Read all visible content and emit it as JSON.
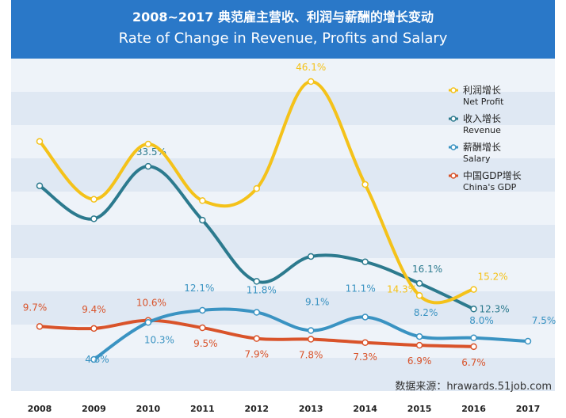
{
  "header": {
    "title_cn": "2008~2017 典范雇主营收、利润与薪酬的增长变动",
    "title_en": "Rate of Change in Revenue, Profits  and Salary"
  },
  "source": "数据来源：hrawards.51job.com",
  "colors": {
    "header_bg": "#2a78c8",
    "net_profit": "#f4c21a",
    "revenue": "#2c7a8e",
    "salary": "#3a93c2",
    "gdp": "#d9532a",
    "band_a": "#dfe8f3",
    "band_b": "#eef3f9"
  },
  "chart_data": {
    "type": "line",
    "title": "Rate of Change in Revenue, Profits  and Salary",
    "xlabel": "",
    "ylabel": "",
    "categories": [
      "2008",
      "2009",
      "2010",
      "2011",
      "2012",
      "2013",
      "2014",
      "2015",
      "2016",
      "2017"
    ],
    "grid": true,
    "legend_position": "top-right",
    "series": [
      {
        "key": "net_profit",
        "name_cn": "利润增长",
        "name_en": "Net Profit",
        "values": [
          37.2,
          28.6,
          36.8,
          28.4,
          30.2,
          46.1,
          30.8,
          14.3,
          15.2,
          null
        ],
        "labels": [
          null,
          null,
          null,
          null,
          null,
          "46.1%",
          null,
          "14.3%",
          "15.2%",
          null
        ]
      },
      {
        "key": "revenue",
        "name_cn": "收入增长",
        "name_en": "Revenue",
        "values": [
          30.6,
          25.7,
          33.5,
          25.5,
          16.4,
          20.1,
          19.3,
          16.1,
          12.3,
          null
        ],
        "labels": [
          null,
          null,
          "33.5%",
          null,
          null,
          null,
          null,
          "16.1%",
          "12.3%",
          null
        ]
      },
      {
        "key": "salary",
        "name_cn": "薪酬增长",
        "name_en": "Salary",
        "values": [
          null,
          4.8,
          10.3,
          12.1,
          11.8,
          9.1,
          11.1,
          8.2,
          8.0,
          7.5
        ],
        "labels": [
          null,
          "4.8%",
          "10.3%",
          "12.1%",
          "11.8%",
          "9.1%",
          "11.1%",
          "8.2%",
          "8.0%",
          "7.5%"
        ]
      },
      {
        "key": "gdp",
        "name_cn": "中国GDP增长",
        "name_en": "China's GDP",
        "values": [
          9.7,
          9.4,
          10.6,
          9.5,
          7.9,
          7.8,
          7.3,
          6.9,
          6.7,
          null
        ],
        "labels": [
          "9.7%",
          "9.4%",
          "10.6%",
          "9.5%",
          "7.9%",
          "7.8%",
          "7.3%",
          "6.9%",
          "6.7%",
          null
        ]
      }
    ]
  }
}
